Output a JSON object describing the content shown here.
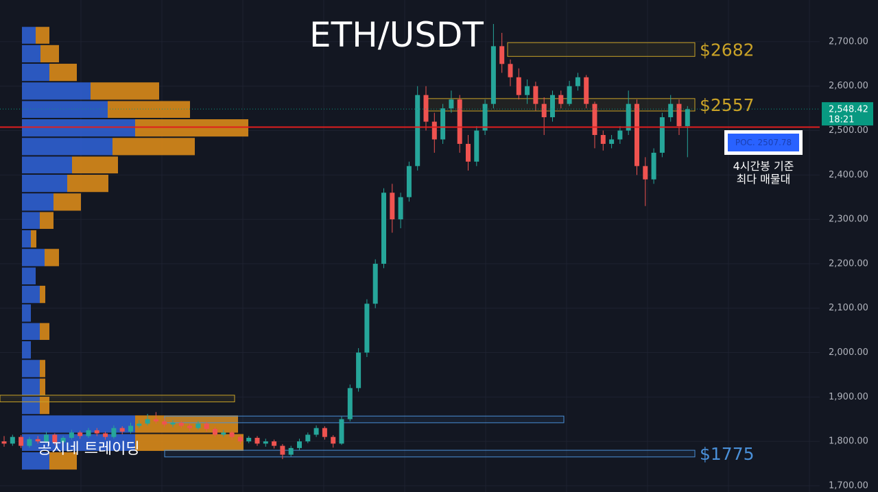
{
  "chart_data": {
    "type": "candlestick",
    "title": "ETH/USDT",
    "ylim": [
      1686,
      2794
    ],
    "yticks": [
      {
        "value": 1700,
        "label": "1,700.00"
      },
      {
        "value": 1800,
        "label": "1,800.00"
      },
      {
        "value": 1900,
        "label": "1,900.00"
      },
      {
        "value": 2000,
        "label": "2,000.00"
      },
      {
        "value": 2100,
        "label": "2,100.00"
      },
      {
        "value": 2200,
        "label": "2,200.00"
      },
      {
        "value": 2300,
        "label": "2,300.00"
      },
      {
        "value": 2400,
        "label": "2,400.00"
      },
      {
        "value": 2500,
        "label": "2,500.00"
      },
      {
        "value": 2600,
        "label": "2,600.00"
      },
      {
        "value": 2700,
        "label": "2,700.00"
      }
    ],
    "up_color": "#26a69a",
    "down_color": "#ef5350",
    "ohlc": [
      [
        1800,
        1812,
        1788,
        1795
      ],
      [
        1795,
        1815,
        1790,
        1810
      ],
      [
        1810,
        1814,
        1785,
        1790
      ],
      [
        1790,
        1810,
        1786,
        1805
      ],
      [
        1805,
        1812,
        1795,
        1800
      ],
      [
        1800,
        1822,
        1796,
        1815
      ],
      [
        1815,
        1818,
        1792,
        1798
      ],
      [
        1798,
        1812,
        1794,
        1808
      ],
      [
        1808,
        1826,
        1804,
        1820
      ],
      [
        1820,
        1824,
        1806,
        1812
      ],
      [
        1812,
        1830,
        1808,
        1825
      ],
      [
        1825,
        1830,
        1812,
        1818
      ],
      [
        1818,
        1822,
        1804,
        1810
      ],
      [
        1810,
        1836,
        1806,
        1830
      ],
      [
        1830,
        1834,
        1816,
        1822
      ],
      [
        1822,
        1842,
        1818,
        1835
      ],
      [
        1835,
        1848,
        1830,
        1840
      ],
      [
        1840,
        1862,
        1836,
        1850
      ],
      [
        1850,
        1866,
        1840,
        1845
      ],
      [
        1845,
        1852,
        1832,
        1838
      ],
      [
        1838,
        1848,
        1832,
        1842
      ],
      [
        1842,
        1846,
        1830,
        1835
      ],
      [
        1835,
        1840,
        1824,
        1830
      ],
      [
        1830,
        1846,
        1826,
        1840
      ],
      [
        1840,
        1844,
        1822,
        1828
      ],
      [
        1828,
        1832,
        1810,
        1815
      ],
      [
        1815,
        1826,
        1810,
        1820
      ],
      [
        1820,
        1824,
        1804,
        1810
      ],
      [
        1810,
        1814,
        1794,
        1800
      ],
      [
        1800,
        1812,
        1796,
        1808
      ],
      [
        1808,
        1812,
        1790,
        1795
      ],
      [
        1795,
        1806,
        1788,
        1800
      ],
      [
        1800,
        1804,
        1784,
        1790
      ],
      [
        1790,
        1794,
        1760,
        1770
      ],
      [
        1770,
        1790,
        1766,
        1785
      ],
      [
        1785,
        1806,
        1780,
        1800
      ],
      [
        1800,
        1820,
        1796,
        1815
      ],
      [
        1815,
        1836,
        1810,
        1830
      ],
      [
        1830,
        1834,
        1804,
        1810
      ],
      [
        1810,
        1814,
        1786,
        1795
      ],
      [
        1795,
        1856,
        1792,
        1850
      ],
      [
        1850,
        1928,
        1845,
        1920
      ],
      [
        1920,
        2010,
        1912,
        2000
      ],
      [
        2000,
        2120,
        1990,
        2110
      ],
      [
        2110,
        2210,
        2100,
        2200
      ],
      [
        2200,
        2370,
        2190,
        2360
      ],
      [
        2360,
        2380,
        2270,
        2300
      ],
      [
        2300,
        2360,
        2280,
        2350
      ],
      [
        2350,
        2430,
        2340,
        2420
      ],
      [
        2420,
        2600,
        2410,
        2580
      ],
      [
        2580,
        2600,
        2500,
        2520
      ],
      [
        2520,
        2540,
        2450,
        2480
      ],
      [
        2480,
        2560,
        2470,
        2550
      ],
      [
        2550,
        2590,
        2540,
        2570
      ],
      [
        2570,
        2580,
        2450,
        2470
      ],
      [
        2470,
        2490,
        2410,
        2430
      ],
      [
        2430,
        2510,
        2420,
        2500
      ],
      [
        2500,
        2570,
        2490,
        2560
      ],
      [
        2560,
        2740,
        2550,
        2690
      ],
      [
        2690,
        2720,
        2630,
        2650
      ],
      [
        2650,
        2660,
        2600,
        2620
      ],
      [
        2620,
        2640,
        2570,
        2580
      ],
      [
        2580,
        2615,
        2560,
        2600
      ],
      [
        2600,
        2610,
        2545,
        2560
      ],
      [
        2560,
        2575,
        2490,
        2530
      ],
      [
        2530,
        2590,
        2520,
        2580
      ],
      [
        2580,
        2590,
        2550,
        2560
      ],
      [
        2560,
        2612,
        2555,
        2600
      ],
      [
        2600,
        2630,
        2590,
        2620
      ],
      [
        2620,
        2625,
        2550,
        2560
      ],
      [
        2560,
        2565,
        2460,
        2490
      ],
      [
        2490,
        2500,
        2455,
        2470
      ],
      [
        2470,
        2490,
        2460,
        2480
      ],
      [
        2480,
        2510,
        2470,
        2500
      ],
      [
        2500,
        2590,
        2490,
        2560
      ],
      [
        2560,
        2570,
        2400,
        2420
      ],
      [
        2420,
        2440,
        2330,
        2390
      ],
      [
        2390,
        2460,
        2380,
        2450
      ],
      [
        2450,
        2540,
        2440,
        2530
      ],
      [
        2530,
        2580,
        2520,
        2560
      ],
      [
        2560,
        2570,
        2490,
        2510
      ],
      [
        2510,
        2555,
        2440,
        2548
      ]
    ],
    "volume_profile": {
      "bins": [
        2735,
        2694,
        2652,
        2610,
        2568,
        2527,
        2485,
        2443,
        2402,
        2360,
        2318,
        2277,
        2235,
        2193,
        2152,
        2110,
        2068,
        2027,
        1985,
        1943,
        1902,
        1860,
        1818,
        1777,
        1735
      ],
      "series": [
        {
          "name": "buy",
          "color": "#2f5fd0",
          "values": [
            20,
            27,
            40,
            100,
            125,
            165,
            132,
            73,
            66,
            46,
            26,
            13,
            33,
            20,
            26,
            13,
            26,
            13,
            26,
            26,
            26,
            165,
            165,
            40
          ]
        },
        {
          "name": "sell",
          "color": "#d98a1a",
          "values": [
            20,
            27,
            40,
            100,
            120,
            165,
            120,
            67,
            60,
            40,
            20,
            8,
            21,
            0,
            8,
            0,
            14,
            0,
            8,
            8,
            14,
            150,
            158,
            40
          ]
        }
      ]
    },
    "zones": [
      {
        "low": 2667,
        "high": 2698,
        "color": "#c9a227",
        "label": "$2682"
      },
      {
        "low": 2544,
        "high": 2572,
        "color": "#c9a227",
        "label": "$2557"
      },
      {
        "low": 1889,
        "high": 1904,
        "color": "#c9a227"
      },
      {
        "low": 1842,
        "high": 1857,
        "color": "#4a90d9"
      },
      {
        "low": 1765,
        "high": 1780,
        "color": "#4a90d9",
        "label": "$1775"
      }
    ],
    "poc": {
      "value": 2507.78,
      "label": "POC. 2507.78",
      "color": "#e01e1e"
    },
    "poc_note": [
      "4시간봉 기준",
      "최다 매물대"
    ],
    "last_price": {
      "value": 2548.42,
      "label": "2,548.42",
      "countdown": "18:21",
      "color": "#089981"
    },
    "watermark": "공지네 트레이딩"
  }
}
